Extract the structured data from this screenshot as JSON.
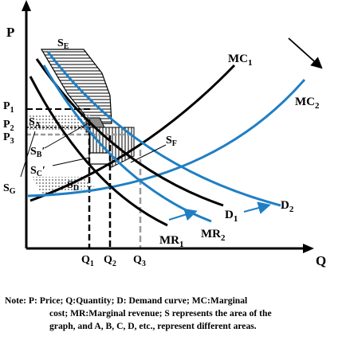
{
  "axes": {
    "y_label": "P",
    "x_label": "Q"
  },
  "price_labels": {
    "p1": "P",
    "p1_sub": "1",
    "p2": "P",
    "p2_sub": "2",
    "p3": "P",
    "p3_sub": "3"
  },
  "quantity_labels": {
    "q1": "Q",
    "q1_sub": "1",
    "q2": "Q",
    "q2_sub": "2",
    "q3": "Q",
    "q3_sub": "3"
  },
  "curve_labels": {
    "mc1": "MC",
    "mc1_sub": "1",
    "mc2": "MC",
    "mc2_sub": "2",
    "d1": "D",
    "d1_sub": "1",
    "d2": "D",
    "d2_sub": "2",
    "mr1": "MR",
    "mr1_sub": "1",
    "mr2": "MR",
    "mr2_sub": "2"
  },
  "area_labels": {
    "se": "S",
    "se_sub": "E",
    "sa": "S",
    "sa_sub": "A",
    "sb": "S",
    "sb_sub": "B",
    "sb_prime": "′",
    "sc": "S",
    "sc_sub": "C",
    "sc_prime": "′",
    "sd": "S",
    "sd_sub": "D",
    "sf": "S",
    "sf_sub": "F",
    "sg": "S",
    "sg_sub": "G"
  },
  "colors": {
    "curve_shifted": "#1f7fc4",
    "curve_original": "#000000",
    "accent_gray": "#9a9a9a"
  },
  "note": {
    "line1": "Note: P: Price; Q:Quantity; D: Demand curve; MC:Marginal",
    "line2": "cost; MR:Marginal revenue; S represents the area of the",
    "line3": "graph, and A, B, C, D, etc., represent different areas."
  }
}
